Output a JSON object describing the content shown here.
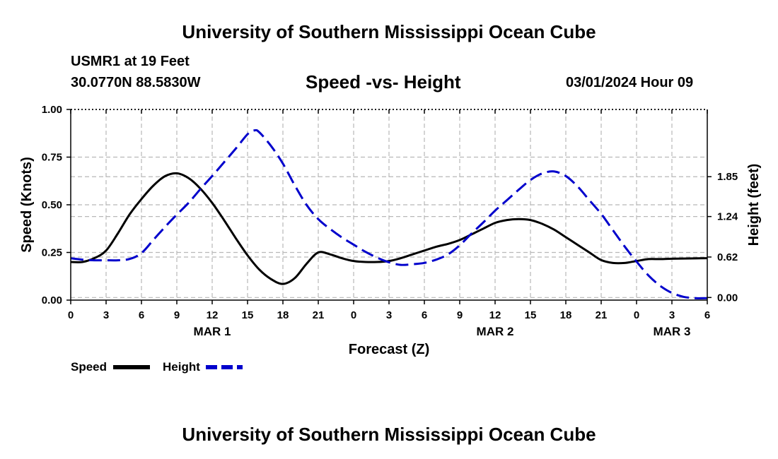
{
  "header": {
    "top_title": "University of Southern Mississippi Ocean Cube",
    "station": "USMR1 at 19 Feet",
    "coords": "30.0770N  88.5830W",
    "date": "03/01/2024 Hour 09",
    "bottom_title": "University of Southern Mississippi Ocean Cube"
  },
  "chart_data": {
    "type": "line",
    "title": "Speed -vs- Height",
    "xlabel": "Forecast (Z)",
    "ylabel": "Speed (Knots)",
    "y2label": "Height (feet)",
    "xlim": [
      0,
      54
    ],
    "ylim": [
      0,
      1
    ],
    "y2lim": [
      -0.04,
      2.88
    ],
    "x_ticks": [
      0,
      3,
      6,
      9,
      12,
      15,
      18,
      21,
      24,
      27,
      30,
      33,
      36,
      39,
      42,
      45,
      48,
      51,
      54
    ],
    "x_tick_labels": [
      "0",
      "3",
      "6",
      "9",
      "12",
      "15",
      "18",
      "21",
      "0",
      "3",
      "6",
      "9",
      "12",
      "15",
      "18",
      "21",
      "0",
      "3",
      "6"
    ],
    "date_labels": [
      {
        "x": 12,
        "label": "MAR 1"
      },
      {
        "x": 36,
        "label": "MAR 2"
      },
      {
        "x": 51,
        "label": "MAR 3"
      }
    ],
    "y_ticks": [
      0,
      0.25,
      0.5,
      0.75,
      1.0
    ],
    "y_tick_labels": [
      "0.00",
      "0.25",
      "0.50",
      "0.75",
      "1.00"
    ],
    "y2_ticks": [
      0.0,
      0.62,
      1.24,
      1.85
    ],
    "y2_tick_labels": [
      "0.00",
      "0.62",
      "1.24",
      "1.85"
    ],
    "grid": true,
    "legend_position": "bottom-left",
    "series": [
      {
        "name": "Speed",
        "axis": "left",
        "color": "#000000",
        "dash": "solid",
        "x": [
          0,
          1,
          2,
          3,
          4,
          5,
          6,
          7,
          8,
          9,
          10,
          11,
          12,
          13,
          14,
          15,
          16,
          17,
          18,
          19,
          20,
          21,
          22,
          23,
          24,
          25,
          26,
          27,
          28,
          29,
          30,
          31,
          32,
          33,
          34,
          35,
          36,
          37,
          38,
          39,
          40,
          41,
          42,
          43,
          44,
          45,
          46,
          47,
          48,
          49,
          50,
          51,
          52,
          53,
          54
        ],
        "values": [
          0.2,
          0.2,
          0.22,
          0.26,
          0.35,
          0.45,
          0.53,
          0.6,
          0.65,
          0.665,
          0.64,
          0.585,
          0.51,
          0.42,
          0.325,
          0.235,
          0.16,
          0.11,
          0.085,
          0.115,
          0.19,
          0.25,
          0.24,
          0.22,
          0.205,
          0.2,
          0.2,
          0.205,
          0.22,
          0.24,
          0.26,
          0.28,
          0.295,
          0.315,
          0.345,
          0.375,
          0.405,
          0.42,
          0.425,
          0.42,
          0.4,
          0.37,
          0.33,
          0.29,
          0.25,
          0.21,
          0.195,
          0.195,
          0.205,
          0.215,
          0.215,
          0.217,
          0.218,
          0.219,
          0.22
        ]
      },
      {
        "name": "Height",
        "axis": "right",
        "color": "#0000cc",
        "dash": "dashed",
        "x": [
          0,
          1,
          2,
          3,
          4,
          5,
          6,
          7,
          8,
          9,
          10,
          11,
          12,
          13,
          14,
          15,
          15.6,
          16,
          17,
          18,
          19,
          20,
          21,
          22,
          23,
          24,
          25,
          26,
          27,
          28,
          29,
          30,
          31,
          32,
          33,
          34,
          35,
          36,
          37,
          38,
          39,
          40,
          41,
          42,
          43,
          44,
          45,
          46,
          47,
          48,
          49,
          50,
          51,
          52,
          53,
          54
        ],
        "values": [
          0.6,
          0.58,
          0.57,
          0.57,
          0.57,
          0.59,
          0.68,
          0.88,
          1.08,
          1.27,
          1.45,
          1.66,
          1.86,
          2.07,
          2.28,
          2.5,
          2.56,
          2.53,
          2.32,
          2.05,
          1.72,
          1.42,
          1.2,
          1.05,
          0.92,
          0.81,
          0.7,
          0.61,
          0.54,
          0.5,
          0.51,
          0.53,
          0.58,
          0.66,
          0.8,
          0.98,
          1.15,
          1.33,
          1.49,
          1.65,
          1.8,
          1.9,
          1.93,
          1.86,
          1.7,
          1.49,
          1.28,
          1.03,
          0.78,
          0.55,
          0.34,
          0.18,
          0.07,
          0.01,
          -0.01,
          -0.01
        ]
      }
    ]
  }
}
